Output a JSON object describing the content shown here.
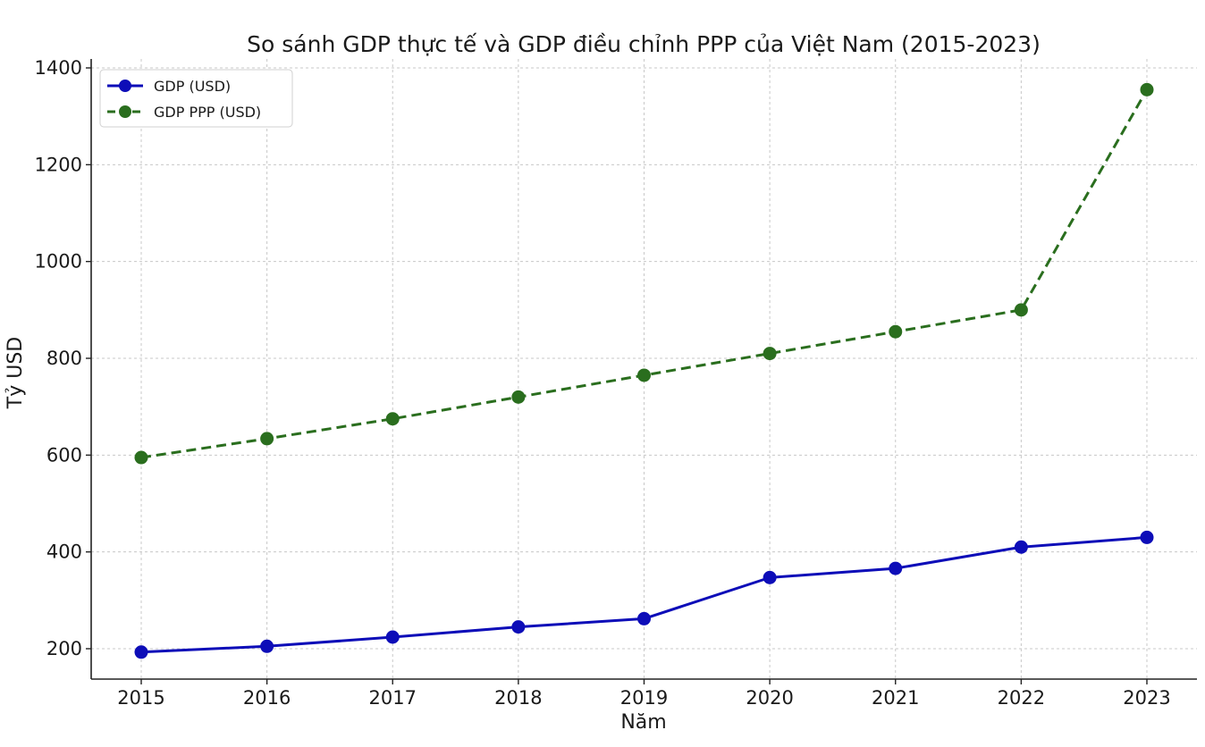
{
  "chart_data": {
    "type": "line",
    "title": "So sánh GDP thực tế và GDP điều chỉnh PPP của Việt Nam (2015-2023)",
    "xlabel": "Năm",
    "ylabel": "Tỷ USD",
    "categories": [
      "2015",
      "2016",
      "2017",
      "2018",
      "2019",
      "2020",
      "2021",
      "2022",
      "2023"
    ],
    "ylim": [
      136,
      1400
    ],
    "yticks": [
      200,
      400,
      600,
      800,
      1000,
      1200,
      1400
    ],
    "grid": true,
    "legend_position": "top-left",
    "series": [
      {
        "name": "GDP (USD)",
        "values": [
          193,
          205,
          224,
          245,
          262,
          347,
          366,
          410,
          430
        ],
        "color": "#0d0db8",
        "line_style": "solid",
        "marker": "circle"
      },
      {
        "name": "GDP PPP (USD)",
        "values": [
          595,
          634,
          675,
          720,
          765,
          810,
          855,
          900,
          1355
        ],
        "color": "#2a6e1e",
        "line_style": "dashed",
        "marker": "circle"
      }
    ]
  }
}
